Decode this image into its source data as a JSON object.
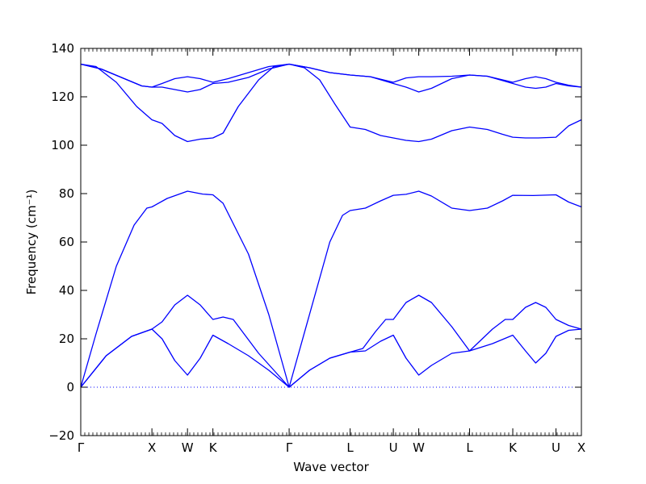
{
  "chart_data": {
    "type": "line",
    "title": "",
    "xlabel": "Wave vector",
    "ylabel": "Frequency (cm⁻¹)",
    "ylim": [
      -20,
      140
    ],
    "yticks": [
      -20,
      0,
      20,
      40,
      60,
      80,
      100,
      120,
      140
    ],
    "ytick_labels": [
      "−20",
      "0",
      "20",
      "40",
      "60",
      "80",
      "100",
      "120",
      "140"
    ],
    "xticks": [
      {
        "label": "Γ",
        "x": 0.0
      },
      {
        "label": "X",
        "x": 1.4
      },
      {
        "label": "W",
        "x": 2.1
      },
      {
        "label": "K",
        "x": 2.6
      },
      {
        "label": "Γ",
        "x": 4.1
      },
      {
        "label": "L",
        "x": 5.3
      },
      {
        "label": "U",
        "x": 6.15
      },
      {
        "label": "W",
        "x": 6.65
      },
      {
        "label": "L",
        "x": 7.65
      },
      {
        "label": "K",
        "x": 8.5
      },
      {
        "label": "U",
        "x": 9.35
      },
      {
        "label": "X",
        "x": 9.85
      }
    ],
    "xlim": [
      0,
      9.85
    ],
    "zero_line": true,
    "line_color": "#0000ff",
    "series": [
      {
        "points": [
          [
            0,
            0
          ],
          [
            0.5,
            13
          ],
          [
            1.0,
            21
          ],
          [
            1.4,
            24
          ],
          [
            1.6,
            20
          ],
          [
            1.85,
            11
          ],
          [
            2.1,
            5
          ],
          [
            2.35,
            12
          ],
          [
            2.6,
            21.5
          ],
          [
            2.9,
            18
          ],
          [
            3.3,
            13
          ],
          [
            3.7,
            7
          ],
          [
            4.1,
            0
          ],
          [
            4.5,
            7
          ],
          [
            4.9,
            12
          ],
          [
            5.3,
            14.5
          ],
          [
            5.6,
            15
          ],
          [
            5.9,
            19
          ],
          [
            6.15,
            21.5
          ],
          [
            6.4,
            12
          ],
          [
            6.65,
            5
          ],
          [
            6.9,
            9
          ],
          [
            7.3,
            14
          ],
          [
            7.65,
            15
          ],
          [
            8.1,
            18
          ],
          [
            8.5,
            21.5
          ],
          [
            8.75,
            15
          ],
          [
            8.95,
            10
          ],
          [
            9.15,
            14
          ],
          [
            9.35,
            21
          ],
          [
            9.6,
            23.5
          ],
          [
            9.85,
            24
          ]
        ]
      },
      {
        "points": [
          [
            0,
            0
          ],
          [
            0.5,
            13
          ],
          [
            1.0,
            21
          ],
          [
            1.4,
            24
          ],
          [
            1.6,
            27
          ],
          [
            1.85,
            34
          ],
          [
            2.1,
            38
          ],
          [
            2.35,
            34
          ],
          [
            2.6,
            28
          ],
          [
            2.8,
            29
          ],
          [
            3.0,
            28
          ],
          [
            3.5,
            14
          ],
          [
            4.1,
            0
          ],
          [
            4.5,
            7
          ],
          [
            4.9,
            12
          ],
          [
            5.3,
            14.5
          ],
          [
            5.55,
            16
          ],
          [
            5.8,
            23
          ],
          [
            6.0,
            28
          ],
          [
            6.15,
            28
          ],
          [
            6.4,
            35
          ],
          [
            6.65,
            38
          ],
          [
            6.9,
            35
          ],
          [
            7.3,
            25
          ],
          [
            7.65,
            15
          ],
          [
            8.1,
            24
          ],
          [
            8.35,
            28
          ],
          [
            8.5,
            28
          ],
          [
            8.75,
            33
          ],
          [
            8.95,
            35
          ],
          [
            9.15,
            33
          ],
          [
            9.35,
            28
          ],
          [
            9.6,
            25.5
          ],
          [
            9.85,
            24
          ]
        ]
      },
      {
        "points": [
          [
            0,
            0
          ],
          [
            0.3,
            22
          ],
          [
            0.7,
            50
          ],
          [
            1.05,
            67
          ],
          [
            1.3,
            74
          ],
          [
            1.4,
            74.5
          ],
          [
            1.7,
            78
          ],
          [
            2.1,
            81
          ],
          [
            2.4,
            79.8
          ],
          [
            2.6,
            79.5
          ],
          [
            2.8,
            76
          ],
          [
            3.3,
            55
          ],
          [
            3.7,
            30
          ],
          [
            4.1,
            0
          ],
          [
            4.5,
            30
          ],
          [
            4.9,
            60
          ],
          [
            5.15,
            71
          ],
          [
            5.3,
            73
          ],
          [
            5.6,
            74
          ],
          [
            5.9,
            77
          ],
          [
            6.15,
            79.3
          ],
          [
            6.4,
            79.7
          ],
          [
            6.65,
            81
          ],
          [
            6.9,
            79
          ],
          [
            7.3,
            74
          ],
          [
            7.65,
            73
          ],
          [
            8.0,
            74
          ],
          [
            8.3,
            77
          ],
          [
            8.5,
            79.3
          ],
          [
            8.9,
            79.2
          ],
          [
            9.35,
            79.5
          ],
          [
            9.6,
            76.5
          ],
          [
            9.85,
            74.5
          ]
        ]
      },
      {
        "points": [
          [
            0,
            133.5
          ],
          [
            0.3,
            132.5
          ],
          [
            0.7,
            126
          ],
          [
            1.1,
            116
          ],
          [
            1.4,
            110.5
          ],
          [
            1.6,
            109
          ],
          [
            1.85,
            104
          ],
          [
            2.1,
            101.5
          ],
          [
            2.35,
            102.5
          ],
          [
            2.6,
            103
          ],
          [
            2.8,
            105
          ],
          [
            3.1,
            116
          ],
          [
            3.5,
            127
          ],
          [
            3.8,
            132.5
          ],
          [
            4.1,
            133.5
          ],
          [
            4.4,
            132
          ],
          [
            4.7,
            127
          ],
          [
            5.0,
            117
          ],
          [
            5.3,
            107.5
          ],
          [
            5.6,
            106.5
          ],
          [
            5.9,
            104
          ],
          [
            6.15,
            103
          ],
          [
            6.4,
            102
          ],
          [
            6.65,
            101.5
          ],
          [
            6.9,
            102.5
          ],
          [
            7.3,
            106
          ],
          [
            7.65,
            107.5
          ],
          [
            8.0,
            106.5
          ],
          [
            8.3,
            104.5
          ],
          [
            8.5,
            103.3
          ],
          [
            8.75,
            103
          ],
          [
            9.0,
            103
          ],
          [
            9.35,
            103.3
          ],
          [
            9.6,
            108
          ],
          [
            9.85,
            110.5
          ]
        ]
      },
      {
        "points": [
          [
            0,
            133.5
          ],
          [
            0.4,
            131.5
          ],
          [
            0.8,
            128
          ],
          [
            1.2,
            124.5
          ],
          [
            1.4,
            124
          ],
          [
            1.6,
            124
          ],
          [
            1.85,
            123
          ],
          [
            2.1,
            122
          ],
          [
            2.35,
            123
          ],
          [
            2.6,
            125.5
          ],
          [
            2.9,
            126
          ],
          [
            3.3,
            128
          ],
          [
            3.7,
            131.5
          ],
          [
            4.1,
            133.5
          ],
          [
            4.5,
            132
          ],
          [
            4.9,
            130
          ],
          [
            5.3,
            129
          ],
          [
            5.7,
            128.3
          ],
          [
            6.15,
            125.5
          ],
          [
            6.4,
            124
          ],
          [
            6.65,
            122
          ],
          [
            6.9,
            123.5
          ],
          [
            7.3,
            127.5
          ],
          [
            7.65,
            129
          ],
          [
            8.0,
            128.5
          ],
          [
            8.5,
            125.5
          ],
          [
            8.75,
            124
          ],
          [
            8.95,
            123.5
          ],
          [
            9.15,
            124
          ],
          [
            9.35,
            125.5
          ],
          [
            9.6,
            124.5
          ],
          [
            9.85,
            124
          ]
        ]
      },
      {
        "points": [
          [
            0,
            133.5
          ],
          [
            0.4,
            131.5
          ],
          [
            0.8,
            128
          ],
          [
            1.2,
            124.5
          ],
          [
            1.4,
            124
          ],
          [
            1.6,
            125.5
          ],
          [
            1.85,
            127.5
          ],
          [
            2.1,
            128.3
          ],
          [
            2.35,
            127.5
          ],
          [
            2.6,
            126
          ],
          [
            2.9,
            127.5
          ],
          [
            3.3,
            130
          ],
          [
            3.7,
            132.5
          ],
          [
            4.1,
            133.5
          ],
          [
            4.5,
            132
          ],
          [
            4.9,
            130
          ],
          [
            5.3,
            129
          ],
          [
            5.7,
            128.3
          ],
          [
            6.15,
            126
          ],
          [
            6.4,
            127.8
          ],
          [
            6.65,
            128.3
          ],
          [
            6.9,
            128.3
          ],
          [
            7.3,
            128.5
          ],
          [
            7.65,
            129
          ],
          [
            8.0,
            128.5
          ],
          [
            8.5,
            126
          ],
          [
            8.75,
            127.5
          ],
          [
            8.95,
            128.3
          ],
          [
            9.15,
            127.5
          ],
          [
            9.35,
            126
          ],
          [
            9.6,
            124.8
          ],
          [
            9.85,
            124
          ]
        ]
      }
    ]
  }
}
